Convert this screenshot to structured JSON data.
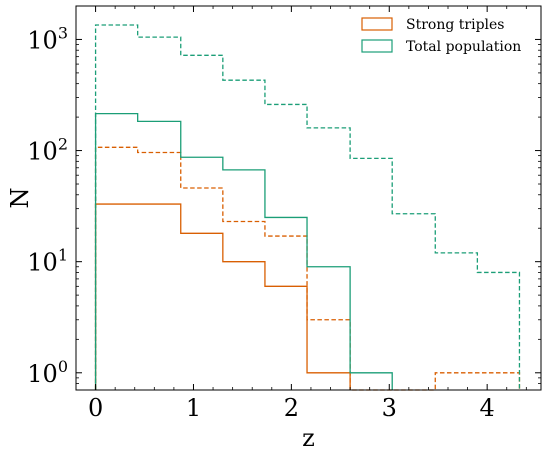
{
  "chart_data": {
    "type": "histogram",
    "xlabel": "z",
    "ylabel": "N",
    "y_scale": "log",
    "xlim": [
      -0.2,
      4.55
    ],
    "ylim": [
      0.7,
      2000
    ],
    "x_ticks": [
      0,
      1,
      2,
      3,
      4
    ],
    "x_tick_labels": [
      "0",
      "1",
      "2",
      "3",
      "4"
    ],
    "y_ticks": [
      1,
      10,
      100,
      1000
    ],
    "y_tick_base": "10",
    "y_tick_exponents": [
      "0",
      "1",
      "2",
      "3"
    ],
    "legend_position": "top-right",
    "legend": [
      "Strong triples",
      "Total population"
    ],
    "colors": {
      "strong": "#d95f02",
      "total": "#1b9e77"
    },
    "series": [
      {
        "legend_index": 0,
        "line": "solid",
        "color": "#d95f02",
        "edges": [
          0,
          0.87,
          1.3,
          1.73,
          2.16,
          2.6
        ],
        "values": [
          33,
          18,
          10,
          6,
          1
        ]
      },
      {
        "legend_index": null,
        "line": "dashed",
        "color": "#d95f02",
        "edges": [
          0,
          0.43,
          0.87,
          1.3,
          1.73,
          2.16,
          2.6,
          3.03,
          3.47,
          3.9,
          4.33
        ],
        "values": [
          107,
          96,
          46,
          23,
          17,
          3,
          0,
          0,
          1,
          1
        ]
      },
      {
        "legend_index": 1,
        "line": "solid",
        "color": "#1b9e77",
        "edges": [
          0,
          0.43,
          0.87,
          1.3,
          1.73,
          2.16,
          2.6,
          3.03
        ],
        "values": [
          215,
          183,
          87,
          67,
          25,
          9,
          1
        ]
      },
      {
        "legend_index": null,
        "line": "dashed",
        "color": "#1b9e77",
        "edges": [
          0,
          0.43,
          0.87,
          1.3,
          1.73,
          2.16,
          2.6,
          3.03,
          3.47,
          3.9,
          4.33
        ],
        "values": [
          1350,
          1050,
          720,
          430,
          260,
          160,
          85,
          27,
          12,
          8
        ]
      }
    ]
  }
}
